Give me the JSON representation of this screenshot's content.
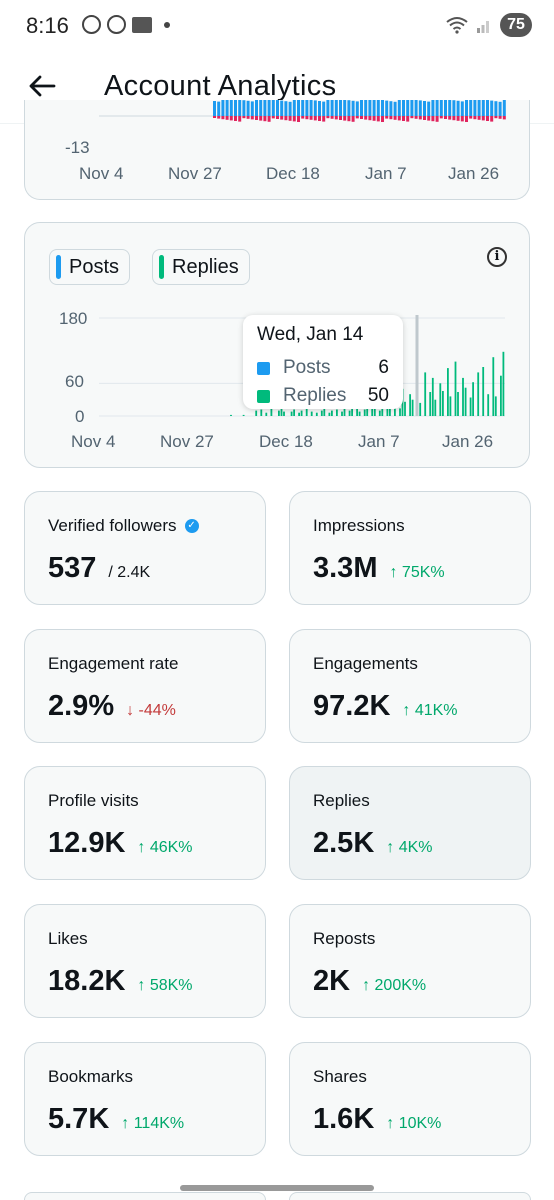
{
  "status_bar": {
    "time": "8:16",
    "battery": "75"
  },
  "header": {
    "title": "Account Analytics"
  },
  "top_chart": {
    "y_min_label": "-13",
    "x_ticks": [
      "Nov 4",
      "Nov 27",
      "Dec 18",
      "Jan 7",
      "Jan 26"
    ]
  },
  "chart_data": {
    "type": "bar",
    "x_ticks": [
      "Nov 4",
      "Nov 27",
      "Dec 18",
      "Jan 7",
      "Jan 26"
    ],
    "y_ticks": [
      "180",
      "60",
      "0"
    ],
    "ylim": [
      0,
      180
    ],
    "series": [
      {
        "name": "Posts",
        "color": "#1d9bf0"
      },
      {
        "name": "Replies",
        "color": "#00ba7c",
        "values": [
          0,
          0,
          0,
          0,
          0,
          0,
          0,
          0,
          0,
          0,
          0,
          0,
          0,
          0,
          0,
          0,
          0,
          0,
          0,
          0,
          0,
          0,
          0,
          0,
          0,
          0,
          0,
          0,
          0,
          0,
          0,
          0,
          0,
          0,
          0,
          0,
          0,
          0,
          0,
          0,
          0,
          0,
          0,
          0,
          0,
          0,
          0,
          0,
          0,
          0,
          0,
          0,
          2,
          0,
          0,
          0,
          0,
          2,
          0,
          0,
          0,
          0,
          10,
          0,
          12,
          0,
          6,
          0,
          28,
          0,
          0,
          10,
          14,
          8,
          0,
          0,
          8,
          12,
          0,
          6,
          10,
          0,
          14,
          0,
          8,
          0,
          6,
          0,
          10,
          14,
          0,
          6,
          10,
          0,
          12,
          0,
          8,
          14,
          0,
          10,
          14,
          0,
          16,
          8,
          0,
          12,
          20,
          0,
          14,
          18,
          0,
          10,
          22,
          0,
          16,
          24,
          0,
          36,
          0,
          14,
          50,
          26,
          0,
          40,
          30,
          0,
          60,
          24,
          0,
          80,
          0,
          44,
          70,
          30,
          0,
          60,
          46,
          0,
          88,
          36,
          0,
          100,
          44,
          0,
          70,
          52,
          0,
          34,
          62,
          0,
          80,
          0,
          90,
          0,
          40,
          0,
          108,
          36,
          0,
          74,
          118
        ]
      }
    ],
    "tooltip": {
      "date": "Wed, Jan 14",
      "rows": [
        {
          "name": "Posts",
          "value": "6",
          "color": "#1d9bf0"
        },
        {
          "name": "Replies",
          "value": "50",
          "color": "#00ba7c"
        }
      ]
    }
  },
  "legend": {
    "posts_label": "Posts",
    "replies_label": "Replies"
  },
  "metrics": [
    {
      "label": "Verified followers",
      "value": "537",
      "sub": "/ 2.4K",
      "change": "",
      "direction": ""
    },
    {
      "label": "Impressions",
      "value": "3.3M",
      "sub": "",
      "change": "↑ 75K%",
      "direction": "up"
    },
    {
      "label": "Engagement rate",
      "value": "2.9%",
      "sub": "",
      "change": "↓ -44%",
      "direction": "down"
    },
    {
      "label": "Engagements",
      "value": "97.2K",
      "sub": "",
      "change": "↑ 41K%",
      "direction": "up"
    },
    {
      "label": "Profile visits",
      "value": "12.9K",
      "sub": "",
      "change": "↑ 46K%",
      "direction": "up"
    },
    {
      "label": "Replies",
      "value": "2.5K",
      "sub": "",
      "change": "↑ 4K%",
      "direction": "up"
    },
    {
      "label": "Likes",
      "value": "18.2K",
      "sub": "",
      "change": "↑ 58K%",
      "direction": "up"
    },
    {
      "label": "Reposts",
      "value": "2K",
      "sub": "",
      "change": "↑ 200K%",
      "direction": "up"
    },
    {
      "label": "Bookmarks",
      "value": "5.7K",
      "sub": "",
      "change": "↑ 114K%",
      "direction": "up"
    },
    {
      "label": "Shares",
      "value": "1.6K",
      "sub": "",
      "change": "↑ 10K%",
      "direction": "up"
    }
  ]
}
